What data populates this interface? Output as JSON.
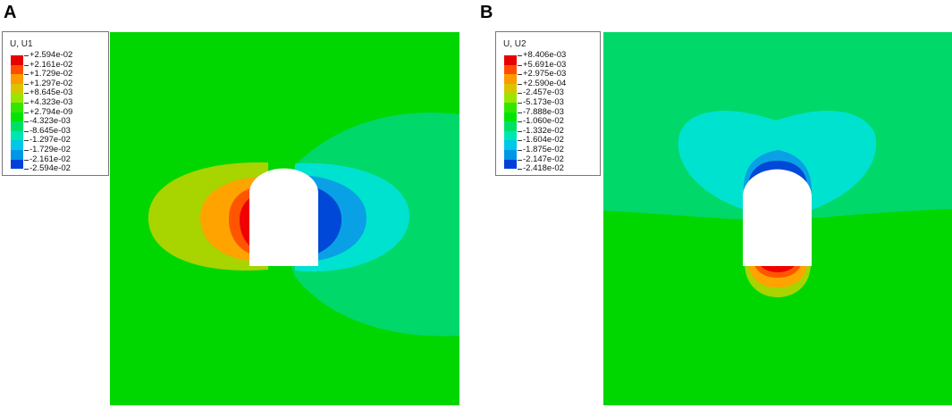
{
  "panels": [
    {
      "label": "A",
      "legend_title": "U, U1",
      "legend_values": [
        "+2.594e-02",
        "+2.161e-02",
        "+1.729e-02",
        "+1.297e-02",
        "+8.645e-03",
        "+4.323e-03",
        "+2.794e-09",
        "-4.323e-03",
        "-8.645e-03",
        "-1.297e-02",
        "-1.729e-02",
        "-2.161e-02",
        "-2.594e-02"
      ],
      "legend_colors": [
        "#e60000",
        "#ff4d00",
        "#ff9900",
        "#d9c400",
        "#99e600",
        "#33e600",
        "#00e600",
        "#00e067",
        "#00e6b3",
        "#00c8e6",
        "#0096e6",
        "#0040d9"
      ]
    },
    {
      "label": "B",
      "legend_title": "U, U2",
      "legend_values": [
        "+8.406e-03",
        "+5.691e-03",
        "+2.975e-03",
        "+2.590e-04",
        "-2.457e-03",
        "-5.173e-03",
        "-7.888e-03",
        "-1.060e-02",
        "-1.332e-02",
        "-1.604e-02",
        "-1.875e-02",
        "-2.147e-02",
        "-2.418e-02"
      ],
      "legend_colors": [
        "#e60000",
        "#ff4d00",
        "#ff9900",
        "#d9c400",
        "#99e600",
        "#33e600",
        "#00e600",
        "#00e067",
        "#00e6b3",
        "#00c8e6",
        "#0096e6",
        "#0040d9"
      ]
    }
  ]
}
